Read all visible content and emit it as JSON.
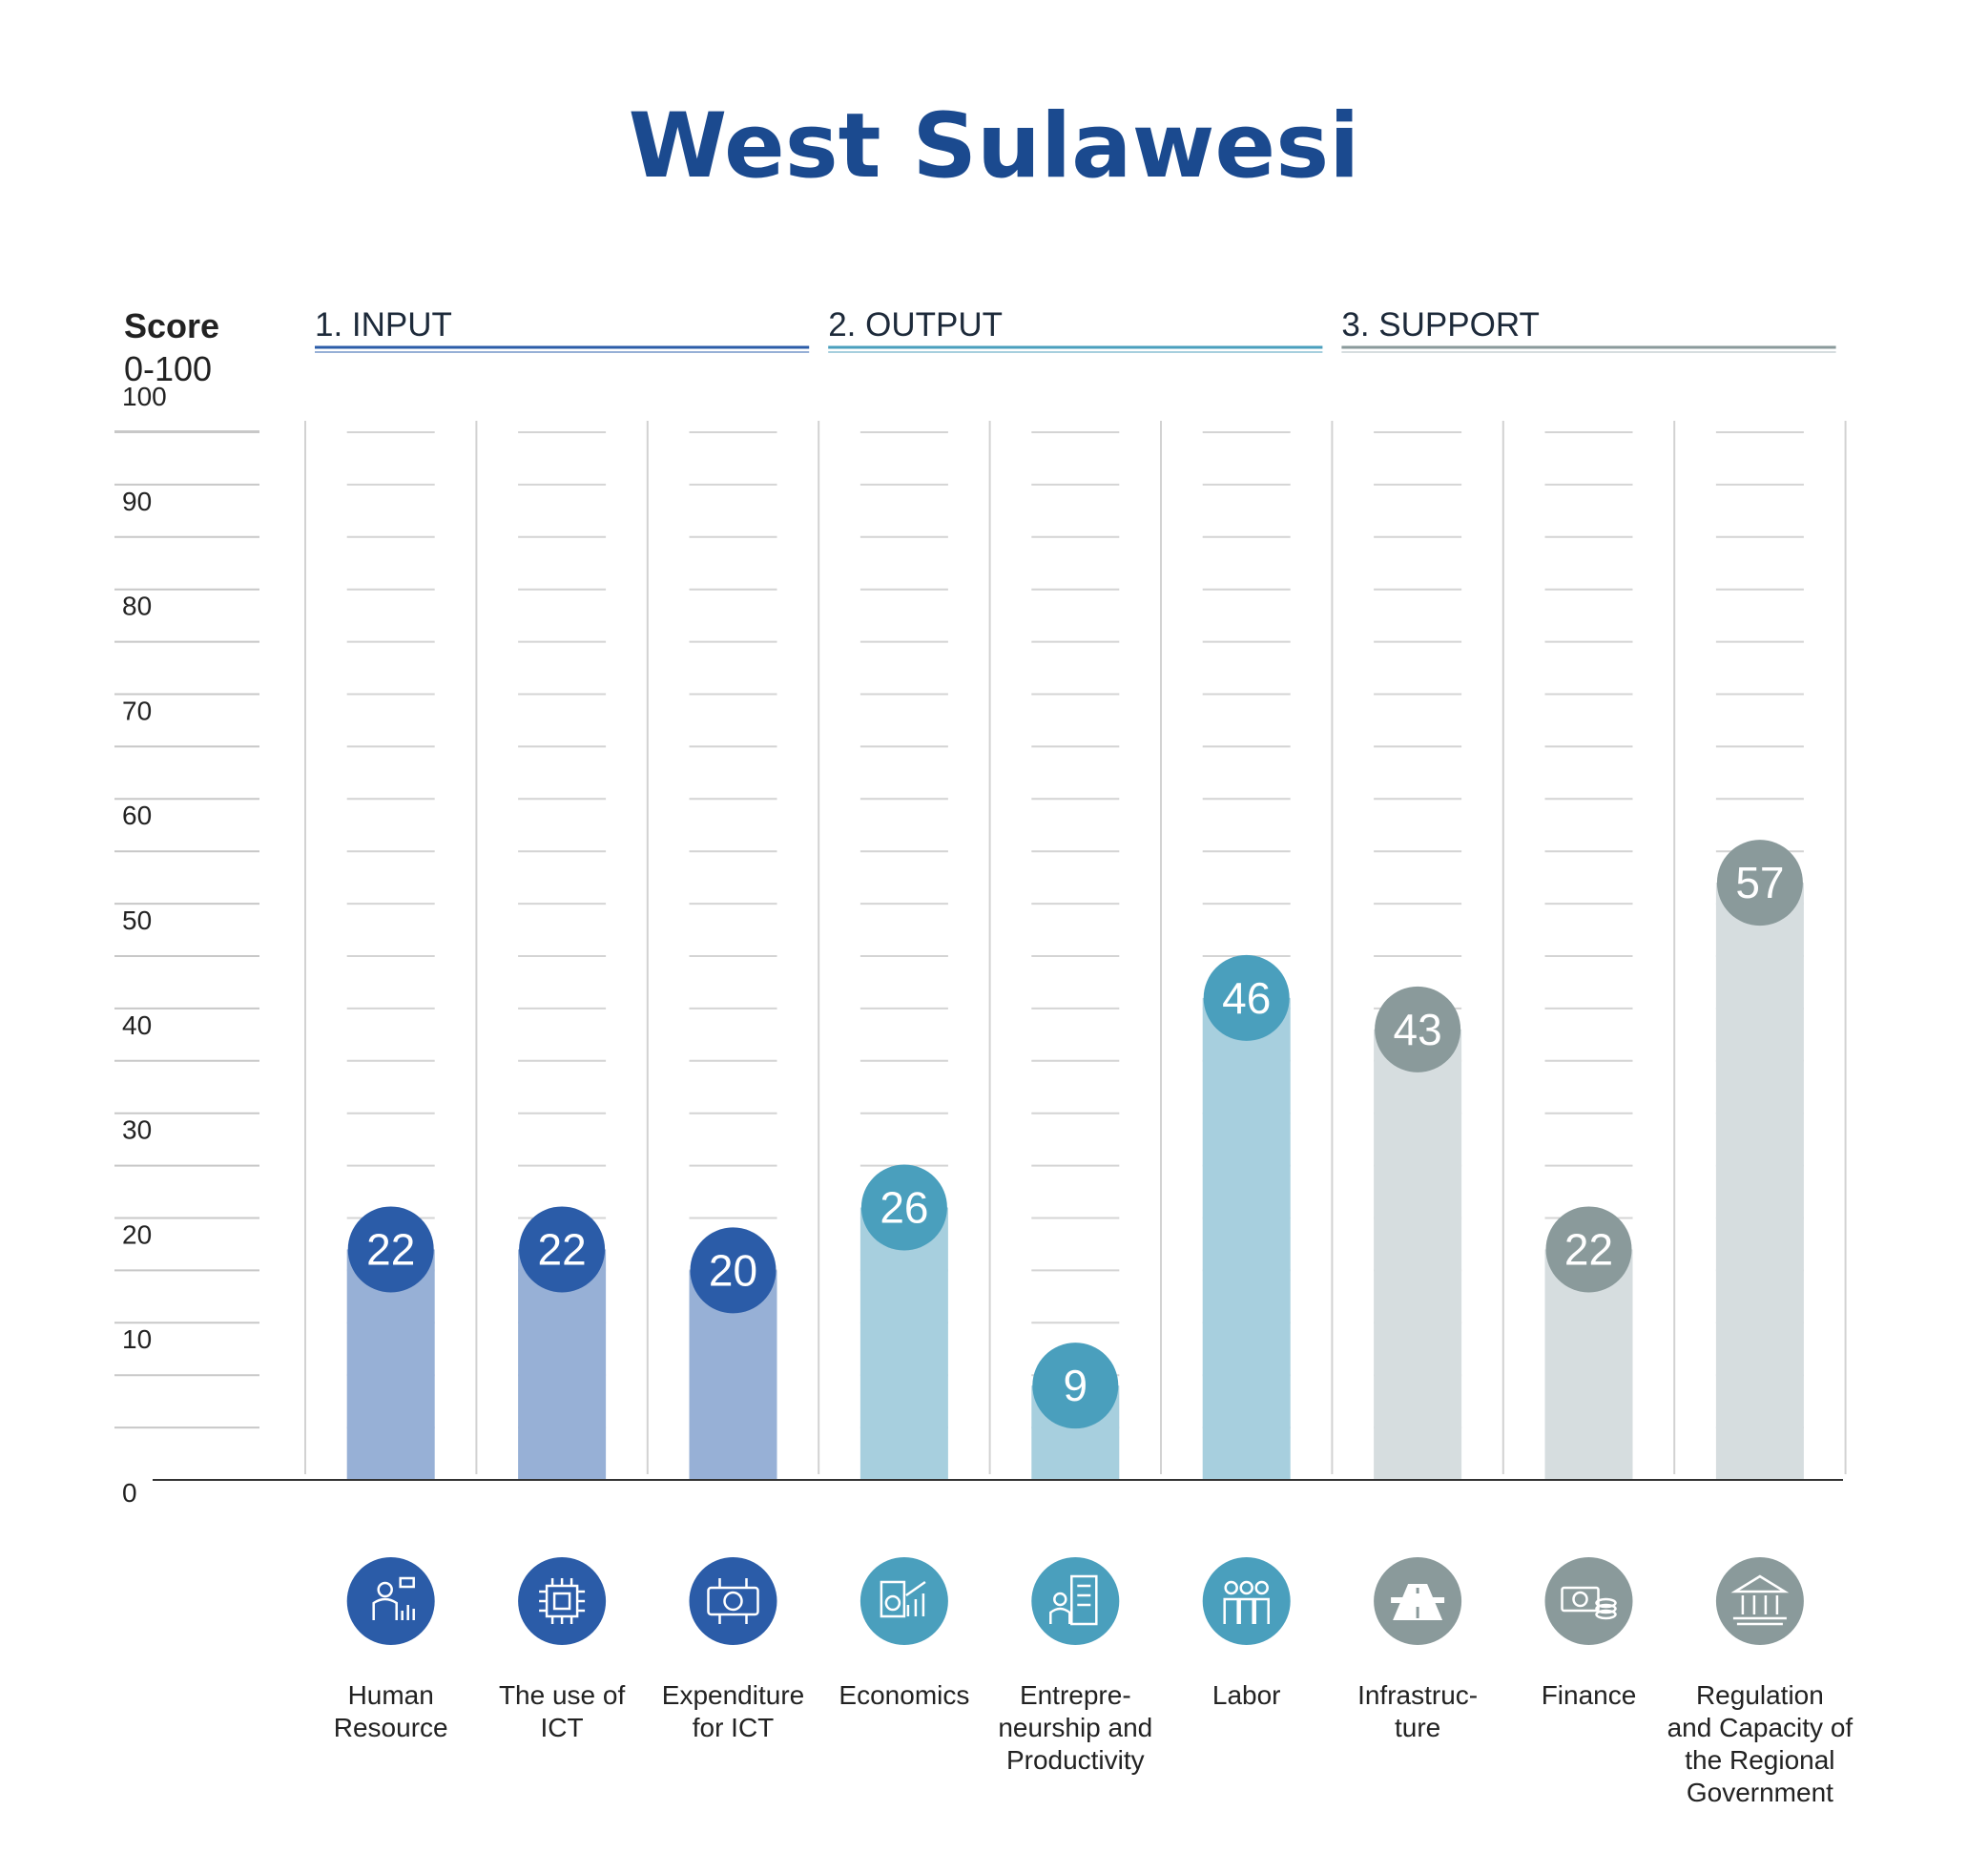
{
  "chart_data": {
    "type": "bar",
    "title": "West Sulawesi",
    "ylabel": "Score",
    "ylabel_range": "0-100",
    "ylim": [
      0,
      100
    ],
    "yticks": [
      "0",
      "10",
      "20",
      "30",
      "40",
      "50",
      "60",
      "70",
      "80",
      "90",
      "100"
    ],
    "groups": [
      {
        "label": "1. INPUT",
        "color": "#2b5ca8",
        "bar_color": "#97b0d6"
      },
      {
        "label": "2. OUTPUT",
        "color": "#4a9fbd",
        "bar_color": "#a7cfde"
      },
      {
        "label": "3. SUPPORT",
        "color": "#8a9a9b",
        "bar_color": "#d6dddf"
      }
    ],
    "categories": [
      {
        "label": [
          "Human",
          "Resource"
        ],
        "value": 22,
        "group": 0,
        "icon": "human-resource-icon"
      },
      {
        "label": [
          "The use of",
          "ICT"
        ],
        "value": 22,
        "group": 0,
        "icon": "chip-icon"
      },
      {
        "label": [
          "Expenditure",
          "for ICT"
        ],
        "value": 20,
        "group": 0,
        "icon": "money-circuit-icon"
      },
      {
        "label": [
          "Economics"
        ],
        "value": 26,
        "group": 1,
        "icon": "economics-chart-icon"
      },
      {
        "label": [
          "Entrepre-",
          "neurship and",
          "Productivity"
        ],
        "value": 9,
        "group": 1,
        "icon": "entrepreneur-building-icon"
      },
      {
        "label": [
          "Labor"
        ],
        "value": 46,
        "group": 1,
        "icon": "workers-icon"
      },
      {
        "label": [
          "Infrastruc-",
          "ture"
        ],
        "value": 43,
        "group": 2,
        "icon": "road-icon"
      },
      {
        "label": [
          "Finance"
        ],
        "value": 22,
        "group": 2,
        "icon": "cash-coins-icon"
      },
      {
        "label": [
          "Regulation",
          "and Capacity of",
          "the Regional",
          "Government"
        ],
        "value": 57,
        "group": 2,
        "icon": "government-building-icon"
      }
    ]
  }
}
